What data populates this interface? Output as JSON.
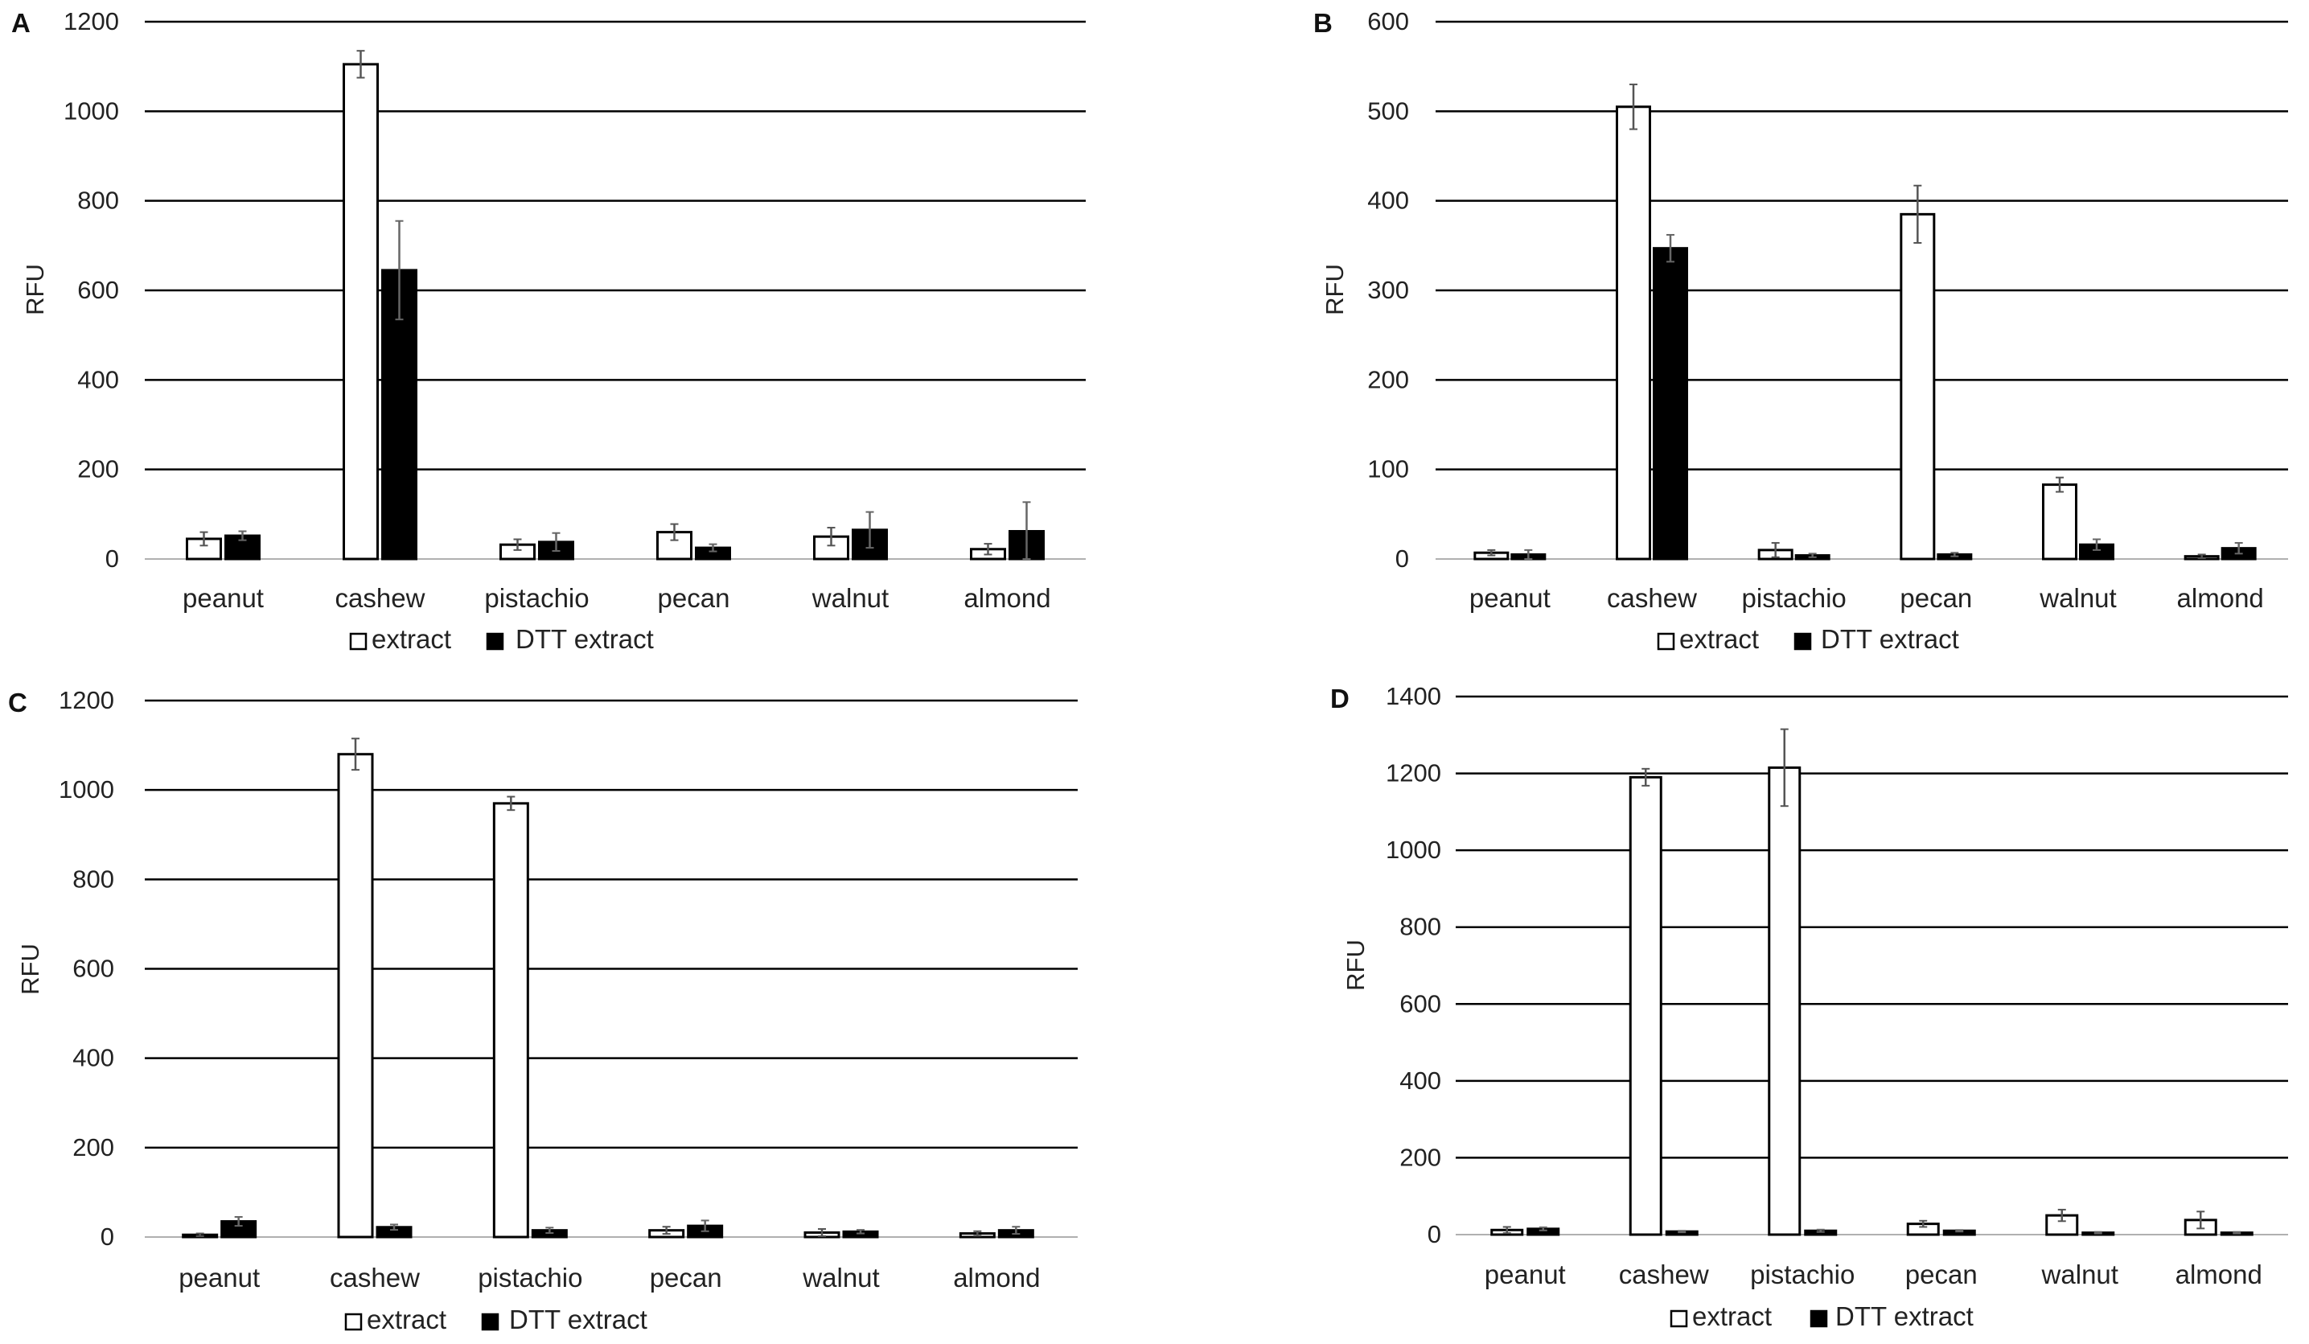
{
  "colors": {
    "extract": "#ffffff",
    "dtt": "#000000",
    "stroke": "#000000",
    "error": "#555555",
    "grid": "#000000"
  },
  "legend": {
    "extract": "extract",
    "dtt": "DTT extract"
  },
  "chart_data": [
    {
      "panel": "A",
      "type": "bar",
      "ylabel": "RFU",
      "ylim": [
        0,
        1200
      ],
      "yticks": [
        0,
        200,
        400,
        600,
        800,
        1000,
        1200
      ],
      "categories": [
        "peanut",
        "cashew",
        "pistachio",
        "pecan",
        "walnut",
        "almond"
      ],
      "series": [
        {
          "name": "extract",
          "values": [
            45,
            1105,
            32,
            60,
            50,
            22
          ],
          "errors": [
            15,
            30,
            12,
            18,
            20,
            12
          ]
        },
        {
          "name": "DTT extract",
          "values": [
            52,
            645,
            38,
            25,
            65,
            62
          ],
          "errors": [
            10,
            110,
            20,
            8,
            40,
            65
          ]
        }
      ]
    },
    {
      "panel": "B",
      "type": "bar",
      "ylabel": "RFU",
      "ylim": [
        0,
        600
      ],
      "yticks": [
        0,
        100,
        200,
        300,
        400,
        500,
        600
      ],
      "categories": [
        "peanut",
        "cashew",
        "pistachio",
        "pecan",
        "walnut",
        "almond"
      ],
      "series": [
        {
          "name": "extract",
          "values": [
            7,
            505,
            10,
            385,
            83,
            3
          ],
          "errors": [
            3,
            25,
            8,
            32,
            8,
            2
          ]
        },
        {
          "name": "DTT extract",
          "values": [
            5,
            347,
            4,
            5,
            16,
            12
          ],
          "errors": [
            5,
            15,
            2,
            2,
            6,
            6
          ]
        }
      ]
    },
    {
      "panel": "C",
      "type": "bar",
      "ylabel": "RFU",
      "ylim": [
        0,
        1200
      ],
      "yticks": [
        0,
        200,
        400,
        600,
        800,
        1000,
        1200
      ],
      "categories": [
        "peanut",
        "cashew",
        "pistachio",
        "pecan",
        "walnut",
        "almond"
      ],
      "series": [
        {
          "name": "extract",
          "values": [
            5,
            1080,
            970,
            15,
            10,
            8
          ],
          "errors": [
            3,
            35,
            15,
            8,
            8,
            5
          ]
        },
        {
          "name": "DTT extract",
          "values": [
            35,
            22,
            15,
            25,
            12,
            15
          ],
          "errors": [
            10,
            6,
            6,
            12,
            4,
            8
          ]
        }
      ]
    },
    {
      "panel": "D",
      "type": "bar",
      "ylabel": "RFU",
      "ylim": [
        0,
        1400
      ],
      "yticks": [
        0,
        200,
        400,
        600,
        800,
        1000,
        1200,
        1400
      ],
      "categories": [
        "peanut",
        "cashew",
        "pistachio",
        "pecan",
        "walnut",
        "almond"
      ],
      "series": [
        {
          "name": "extract",
          "values": [
            12,
            1190,
            1215,
            28,
            50,
            38
          ],
          "errors": [
            8,
            22,
            100,
            8,
            15,
            22
          ]
        },
        {
          "name": "DTT extract",
          "values": [
            15,
            8,
            10,
            10,
            5,
            5
          ],
          "errors": [
            4,
            2,
            3,
            2,
            2,
            2
          ]
        }
      ]
    }
  ]
}
